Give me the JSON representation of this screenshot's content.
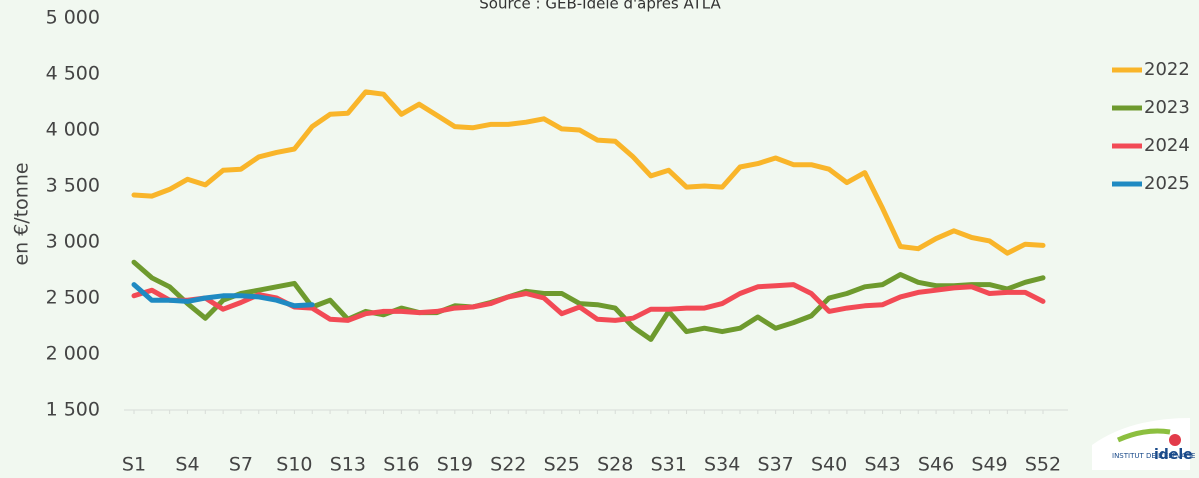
{
  "chart_data": {
    "type": "line",
    "subtitle": "Source : GEB-Idele d'après ATLA",
    "y_label": "en €/tonne",
    "categories": [
      "S1",
      null,
      null,
      "S4",
      null,
      null,
      "S7",
      null,
      null,
      "S10",
      null,
      null,
      "S13",
      null,
      null,
      "S16",
      null,
      null,
      "S19",
      null,
      null,
      "S22",
      null,
      null,
      "S25",
      null,
      null,
      "S28",
      null,
      null,
      "S31",
      null,
      null,
      "S34",
      null,
      null,
      "S37",
      null,
      null,
      "S40",
      null,
      null,
      "S43",
      null,
      null,
      "S46",
      null,
      null,
      "S49",
      null,
      null,
      "S52"
    ],
    "series": [
      {
        "name": "2022",
        "color": "#f9b52a",
        "values": [
          3420,
          3410,
          3470,
          3560,
          3510,
          3640,
          3650,
          3760,
          3800,
          3830,
          4030,
          4140,
          4150,
          4340,
          4320,
          4140,
          4230,
          4130,
          4030,
          4020,
          4050,
          4050,
          4070,
          4100,
          4010,
          4000,
          3910,
          3900,
          3760,
          3590,
          3640,
          3490,
          3500,
          3490,
          3670,
          3700,
          3750,
          3690,
          3690,
          3650,
          3530,
          3620,
          3300,
          2960,
          2940,
          3030,
          3100,
          3040,
          3010,
          2900,
          2980,
          2970
        ]
      },
      {
        "name": "2023",
        "color": "#6e9a2e",
        "values": [
          2820,
          2680,
          2600,
          2450,
          2320,
          2480,
          2540,
          2570,
          2600,
          2630,
          2420,
          2480,
          2310,
          2380,
          2350,
          2410,
          2370,
          2370,
          2430,
          2420,
          2460,
          2510,
          2560,
          2540,
          2540,
          2450,
          2440,
          2410,
          2240,
          2130,
          2380,
          2200,
          2230,
          2200,
          2230,
          2330,
          2230,
          2280,
          2340,
          2500,
          2540,
          2600,
          2620,
          2710,
          2640,
          2610,
          2610,
          2620,
          2620,
          2580,
          2640,
          2680
        ]
      },
      {
        "name": "2024",
        "color": "#f24a55",
        "values": [
          2520,
          2570,
          2480,
          2480,
          2500,
          2400,
          2460,
          2530,
          2500,
          2420,
          2410,
          2310,
          2300,
          2360,
          2380,
          2380,
          2370,
          2380,
          2410,
          2420,
          2450,
          2510,
          2540,
          2500,
          2360,
          2420,
          2310,
          2300,
          2320,
          2400,
          2400,
          2410,
          2410,
          2450,
          2540,
          2600,
          2610,
          2620,
          2540,
          2380,
          2410,
          2430,
          2440,
          2510,
          2550,
          2570,
          2590,
          2600,
          2540,
          2550,
          2550,
          2470
        ]
      },
      {
        "name": "2025",
        "color": "#1f8ac2",
        "values": [
          2620,
          2480,
          2480,
          2470,
          2500,
          2520,
          2520,
          2510,
          2480,
          2430,
          2440,
          null,
          null,
          null,
          null,
          null,
          null,
          null,
          null,
          null,
          null,
          null,
          null,
          null,
          null,
          null,
          null,
          null,
          null,
          null,
          null,
          null,
          null,
          null,
          null,
          null,
          null,
          null,
          null,
          null,
          null,
          null,
          null,
          null,
          null,
          null,
          null,
          null,
          null,
          null,
          null,
          null
        ]
      }
    ],
    "ylim": [
      1500,
      5000
    ],
    "yticks": [
      {
        "value": 1500,
        "label": "1 500"
      },
      {
        "value": 2000,
        "label": "2 000"
      },
      {
        "value": 2500,
        "label": "2 500"
      },
      {
        "value": 3000,
        "label": "3 000"
      },
      {
        "value": 3500,
        "label": "3 500"
      },
      {
        "value": 4000,
        "label": "4 000"
      },
      {
        "value": 4500,
        "label": "4 500"
      },
      {
        "value": 5000,
        "label": "5 000"
      }
    ],
    "legend": "right"
  },
  "logo": {
    "institute": "INSTITUT DE L'ELEVAGE",
    "name": "idele"
  }
}
